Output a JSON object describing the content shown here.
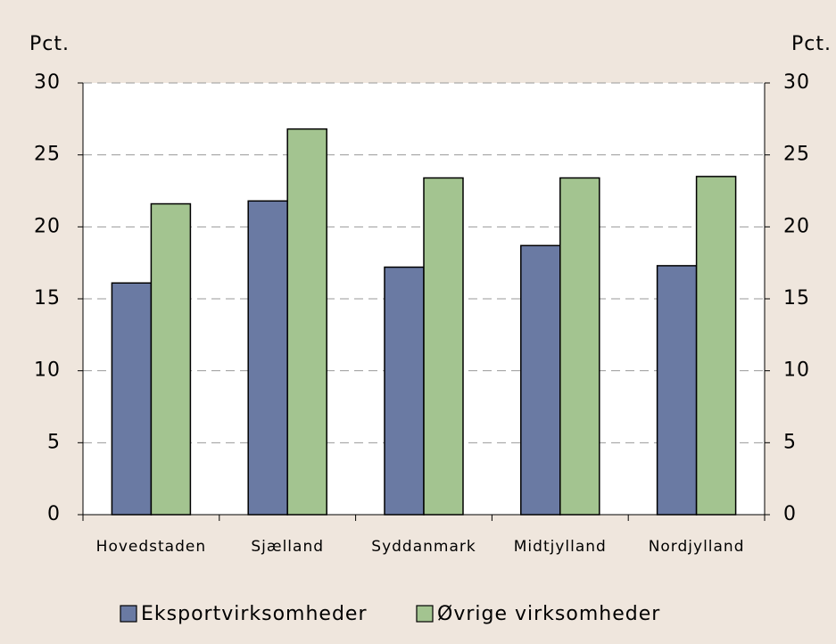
{
  "chart_data": {
    "type": "bar",
    "ylabel": "Pct.",
    "y2label": "Pct.",
    "categories": [
      "Hovedstaden",
      "Sjælland",
      "Syddanmark",
      "Midtjylland",
      "Nordjylland"
    ],
    "series": [
      {
        "name": "Eksportvirksomheder",
        "color": "#6a7aa3",
        "values": [
          16.1,
          21.8,
          17.2,
          18.7,
          17.3
        ]
      },
      {
        "name": "Øvrige virksomheder",
        "color": "#a3c490",
        "values": [
          21.6,
          26.8,
          23.4,
          23.4,
          23.5
        ]
      }
    ],
    "ylim": [
      0,
      30
    ],
    "yticks": [
      0,
      5,
      10,
      15,
      20,
      25,
      30
    ],
    "y2lim": [
      0,
      30
    ],
    "y2ticks": [
      0,
      5,
      10,
      15,
      20,
      25,
      30
    ],
    "grid": true,
    "legend": "bottom"
  }
}
